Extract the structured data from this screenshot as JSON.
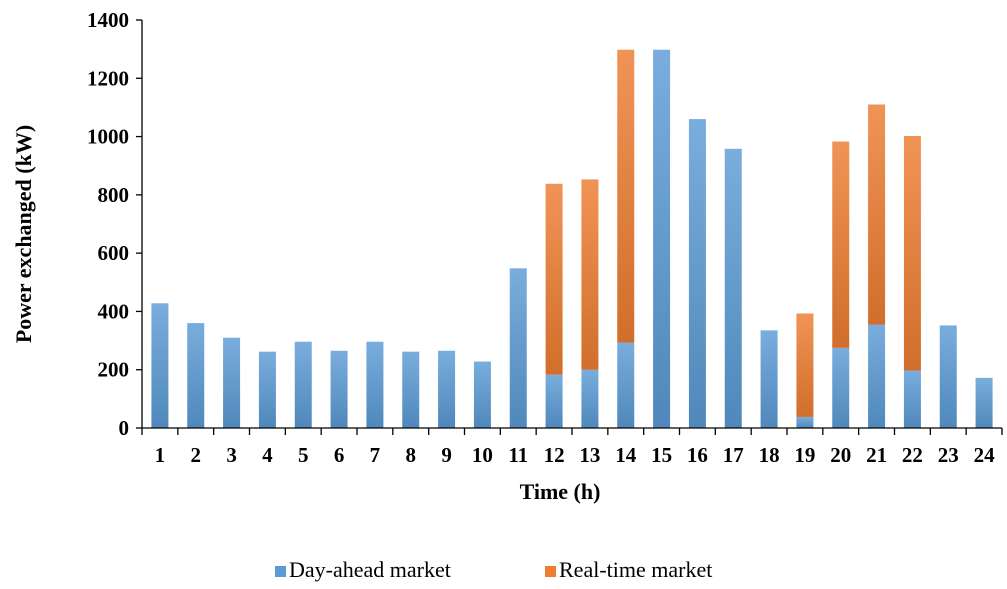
{
  "chart_data": {
    "type": "bar",
    "stacked": true,
    "title": "",
    "xlabel": "Time (h)",
    "ylabel": "Power exchanged (kW)",
    "ylim": [
      0,
      1400
    ],
    "yticks": [
      0,
      200,
      400,
      600,
      800,
      1000,
      1200,
      1400
    ],
    "grid": false,
    "legend_position": "bottom",
    "categories": [
      "1",
      "2",
      "3",
      "4",
      "5",
      "6",
      "7",
      "8",
      "9",
      "10",
      "11",
      "12",
      "13",
      "14",
      "15",
      "16",
      "17",
      "18",
      "19",
      "20",
      "21",
      "22",
      "23",
      "24"
    ],
    "series": [
      {
        "name": "Day-ahead market",
        "color": "#5B9BD5",
        "values": [
          428,
          360,
          310,
          262,
          296,
          265,
          296,
          262,
          265,
          228,
          548,
          183,
          200,
          293,
          1298,
          1060,
          958,
          335,
          38,
          275,
          355,
          197,
          352,
          172
        ]
      },
      {
        "name": "Real-time market",
        "color": "#ED7D31",
        "values": [
          0,
          0,
          0,
          0,
          0,
          0,
          0,
          0,
          0,
          0,
          0,
          655,
          653,
          1005,
          0,
          0,
          0,
          0,
          355,
          708,
          755,
          805,
          0,
          0
        ]
      }
    ]
  }
}
